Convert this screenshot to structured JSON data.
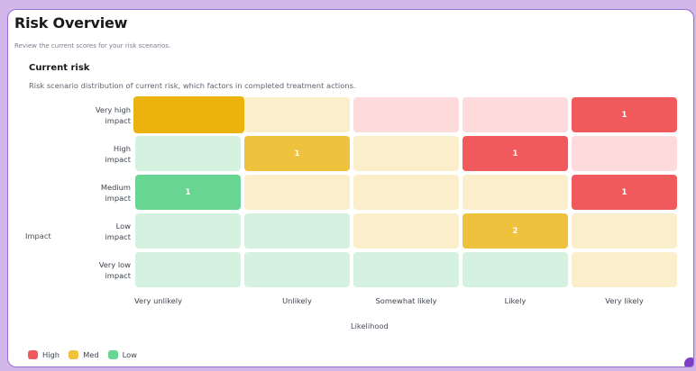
{
  "page": {
    "title": "Risk Overview",
    "subtitle": "Review the current scores for your risk scenarios."
  },
  "section": {
    "title": "Current risk",
    "description": "Risk scenario distribution of current risk, which factors in completed treatment actions."
  },
  "matrix": {
    "impact_axis_label": "Impact",
    "likelihood_axis_label": "Likelihood",
    "rows": [
      {
        "label_lines": [
          "Very high",
          "impact"
        ]
      },
      {
        "label_lines": [
          "High",
          "impact"
        ]
      },
      {
        "label_lines": [
          "Medium",
          "impact"
        ]
      },
      {
        "label_lines": [
          "Low",
          "impact"
        ]
      },
      {
        "label_lines": [
          "Very low",
          "impact"
        ]
      }
    ],
    "columns": [
      "Very unlikely",
      "Unlikely",
      "Somewhat likely",
      "Likely",
      "Very likely"
    ],
    "cells": [
      [
        {
          "level": "med",
          "count": "",
          "active": true
        },
        {
          "level": "med",
          "count": "",
          "active": false
        },
        {
          "level": "high",
          "count": "",
          "active": false
        },
        {
          "level": "high",
          "count": "",
          "active": false
        },
        {
          "level": "high",
          "count": "1",
          "active": true
        }
      ],
      [
        {
          "level": "low",
          "count": "",
          "active": false
        },
        {
          "level": "med",
          "count": "1",
          "active": true
        },
        {
          "level": "med",
          "count": "",
          "active": false
        },
        {
          "level": "high",
          "count": "1",
          "active": true
        },
        {
          "level": "high",
          "count": "",
          "active": false
        }
      ],
      [
        {
          "level": "low",
          "count": "1",
          "active": true
        },
        {
          "level": "med",
          "count": "",
          "active": false
        },
        {
          "level": "med",
          "count": "",
          "active": false
        },
        {
          "level": "med",
          "count": "",
          "active": false
        },
        {
          "level": "high",
          "count": "1",
          "active": true
        }
      ],
      [
        {
          "level": "low",
          "count": "",
          "active": false
        },
        {
          "level": "low",
          "count": "",
          "active": false
        },
        {
          "level": "med",
          "count": "",
          "active": false
        },
        {
          "level": "med",
          "count": "2",
          "active": true
        },
        {
          "level": "med",
          "count": "",
          "active": false
        }
      ],
      [
        {
          "level": "low",
          "count": "",
          "active": false
        },
        {
          "level": "low",
          "count": "",
          "active": false
        },
        {
          "level": "low",
          "count": "",
          "active": false
        },
        {
          "level": "low",
          "count": "",
          "active": false
        },
        {
          "level": "med",
          "count": "",
          "active": false
        }
      ]
    ]
  },
  "legend": [
    {
      "label": "High",
      "level": "high"
    },
    {
      "label": "Med",
      "level": "med"
    },
    {
      "label": "Low",
      "level": "low"
    }
  ],
  "colors": {
    "high_active": "#f05a5c",
    "high_light": "#fddbdc",
    "med_active": "#eec23c",
    "med_light": "#fbeecb",
    "med_active_alt": "#ecb30f",
    "low_active": "#68d692",
    "low_light": "#d4f2df",
    "accent": "#9b6fd1"
  }
}
